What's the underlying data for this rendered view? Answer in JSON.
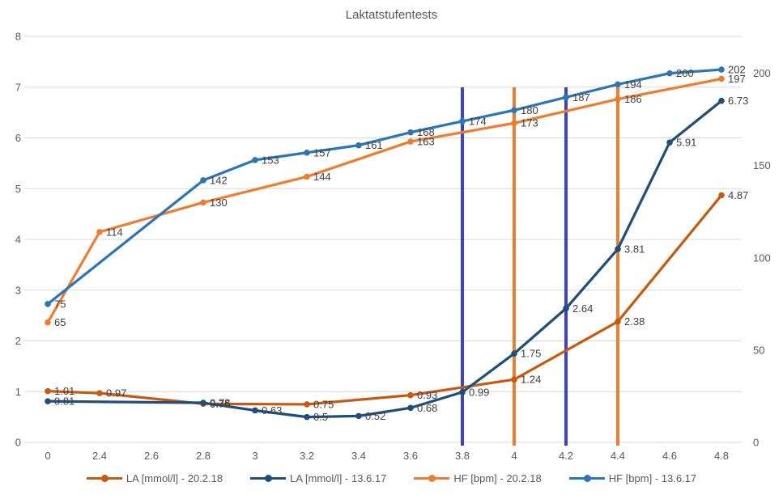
{
  "chart_data": {
    "type": "line",
    "title": "Laktatstufentests",
    "categories": [
      "0",
      "2.4",
      "2.6",
      "2.8",
      "3",
      "3.2",
      "3.4",
      "3.6",
      "3.8",
      "4",
      "4.2",
      "4.4",
      "4.6",
      "4.8"
    ],
    "axes": {
      "left": {
        "min": 0,
        "max": 8,
        "tick_step": 1,
        "tick_labels": [
          "0",
          "1",
          "2",
          "3",
          "4",
          "5",
          "6",
          "7",
          "8"
        ]
      },
      "right": {
        "min": 0,
        "max": 220,
        "tick_values": [
          0,
          50,
          100,
          150,
          200
        ],
        "tick_labels": [
          "0",
          "50",
          "100",
          "150",
          "200"
        ]
      },
      "grid": "horizontal"
    },
    "series": [
      {
        "name": "LA [mmol/l] - 20.2.18",
        "color": "#C55A11",
        "axis": "left",
        "values": [
          1.01,
          0.97,
          null,
          0.76,
          null,
          0.75,
          null,
          0.93,
          null,
          1.24,
          null,
          2.38,
          null,
          4.87
        ]
      },
      {
        "name": "LA [mmol/l]  - 13.6.17",
        "color": "#1F4E79",
        "axis": "left",
        "values": [
          0.81,
          null,
          null,
          0.78,
          0.63,
          0.5,
          0.52,
          0.68,
          0.99,
          1.75,
          2.64,
          3.81,
          5.91,
          6.73
        ]
      },
      {
        "name": "HF [bpm] - 20.2.18",
        "color": "#ED7D31",
        "axis": "right",
        "values": [
          65,
          114,
          null,
          130,
          null,
          144,
          null,
          163,
          null,
          173,
          null,
          186,
          null,
          197
        ]
      },
      {
        "name": "HF [bpm] - 13.6.17",
        "color": "#2E75B6",
        "axis": "right",
        "values": [
          75,
          null,
          null,
          142,
          153,
          157,
          161,
          168,
          174,
          180,
          187,
          194,
          200,
          202
        ]
      }
    ],
    "reference_lines": [
      {
        "category": "3.8",
        "color": "#3C44C4"
      },
      {
        "category": "4",
        "color": "#ED7D31"
      },
      {
        "category": "4.2",
        "color": "#3C44C4"
      },
      {
        "category": "4.4",
        "color": "#ED7D31"
      }
    ],
    "legend_position": "bottom",
    "colors": {
      "gridline": "#D9D9D9",
      "axis_text": "#595959",
      "data_label": "#404040",
      "title": "#595959"
    }
  }
}
